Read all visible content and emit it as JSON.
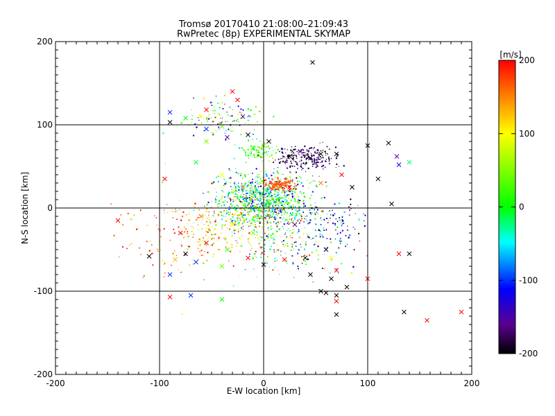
{
  "chart_data": {
    "type": "scatter",
    "title": "Tromsø 20170410 21:08:00–21:09:43",
    "subtitle": "RwPretec (8p) EXPERIMENTAL SKYMAP",
    "xlabel": "E-W location [km]",
    "ylabel": "N-S location [km]",
    "xlim": [
      -200,
      200
    ],
    "ylim": [
      -200,
      200
    ],
    "xticks": [
      "-200",
      "-100",
      "0",
      "100",
      "200"
    ],
    "yticks": [
      "-200",
      "-100",
      "0",
      "100",
      "200"
    ],
    "grid": true,
    "colorbar": {
      "label": "[m/s]",
      "range": [
        -200,
        200
      ],
      "ticks": [
        "200",
        "100",
        "0",
        "-100",
        "-200"
      ]
    },
    "crosses": [
      [
        47,
        175,
        -200
      ],
      [
        -30,
        140,
        200
      ],
      [
        -25,
        130,
        200
      ],
      [
        -55,
        118,
        200
      ],
      [
        -90,
        115,
        -100
      ],
      [
        -75,
        108,
        0
      ],
      [
        -60,
        110,
        100
      ],
      [
        -20,
        110,
        -150
      ],
      [
        -40,
        98,
        50
      ],
      [
        -55,
        95,
        -100
      ],
      [
        -15,
        88,
        -200
      ],
      [
        -90,
        103,
        -200
      ],
      [
        -55,
        80,
        50
      ],
      [
        -35,
        85,
        -150
      ],
      [
        -65,
        55,
        -10
      ],
      [
        -10,
        72,
        0
      ],
      [
        0,
        75,
        50
      ],
      [
        5,
        80,
        -200
      ],
      [
        25,
        62,
        -200
      ],
      [
        35,
        68,
        -150
      ],
      [
        45,
        60,
        -200
      ],
      [
        55,
        65,
        -200
      ],
      [
        70,
        65,
        -200
      ],
      [
        100,
        75,
        -200
      ],
      [
        120,
        78,
        -200
      ],
      [
        128,
        62,
        -150
      ],
      [
        130,
        52,
        -120
      ],
      [
        140,
        55,
        -20
      ],
      [
        110,
        35,
        -200
      ],
      [
        55,
        30,
        150
      ],
      [
        75,
        40,
        200
      ],
      [
        85,
        25,
        -200
      ],
      [
        -95,
        35,
        200
      ],
      [
        -40,
        40,
        100
      ],
      [
        -20,
        25,
        150
      ],
      [
        25,
        25,
        200
      ],
      [
        -140,
        -15,
        200
      ],
      [
        -60,
        -10,
        150
      ],
      [
        -80,
        -30,
        200
      ],
      [
        -30,
        -20,
        100
      ],
      [
        -110,
        -58,
        -200
      ],
      [
        -85,
        -62,
        130
      ],
      [
        -75,
        -55,
        -200
      ],
      [
        -55,
        -42,
        200
      ],
      [
        -35,
        -50,
        20
      ],
      [
        -40,
        -70,
        40
      ],
      [
        -65,
        -65,
        -100
      ],
      [
        -90,
        -80,
        -100
      ],
      [
        -40,
        -110,
        0
      ],
      [
        -90,
        -107,
        200
      ],
      [
        -70,
        -105,
        -100
      ],
      [
        0,
        -68,
        -200
      ],
      [
        20,
        -62,
        200
      ],
      [
        40,
        -60,
        -200
      ],
      [
        60,
        -50,
        -200
      ],
      [
        65,
        -60,
        100
      ],
      [
        70,
        -75,
        200
      ],
      [
        45,
        -80,
        -200
      ],
      [
        65,
        -85,
        -200
      ],
      [
        80,
        -95,
        -200
      ],
      [
        55,
        -100,
        -200
      ],
      [
        60,
        -102,
        -200
      ],
      [
        70,
        -105,
        -200
      ],
      [
        70,
        -112,
        200
      ],
      [
        70,
        -128,
        -200
      ],
      [
        100,
        -85,
        200
      ],
      [
        130,
        -55,
        200
      ],
      [
        140,
        -55,
        -200
      ],
      [
        135,
        -125,
        -200
      ],
      [
        157,
        -135,
        200
      ],
      [
        123,
        5,
        -200
      ],
      [
        190,
        -125,
        200
      ],
      [
        30,
        -20,
        -150
      ],
      [
        -15,
        -60,
        200
      ],
      [
        -10,
        -30,
        50
      ]
    ]
  }
}
